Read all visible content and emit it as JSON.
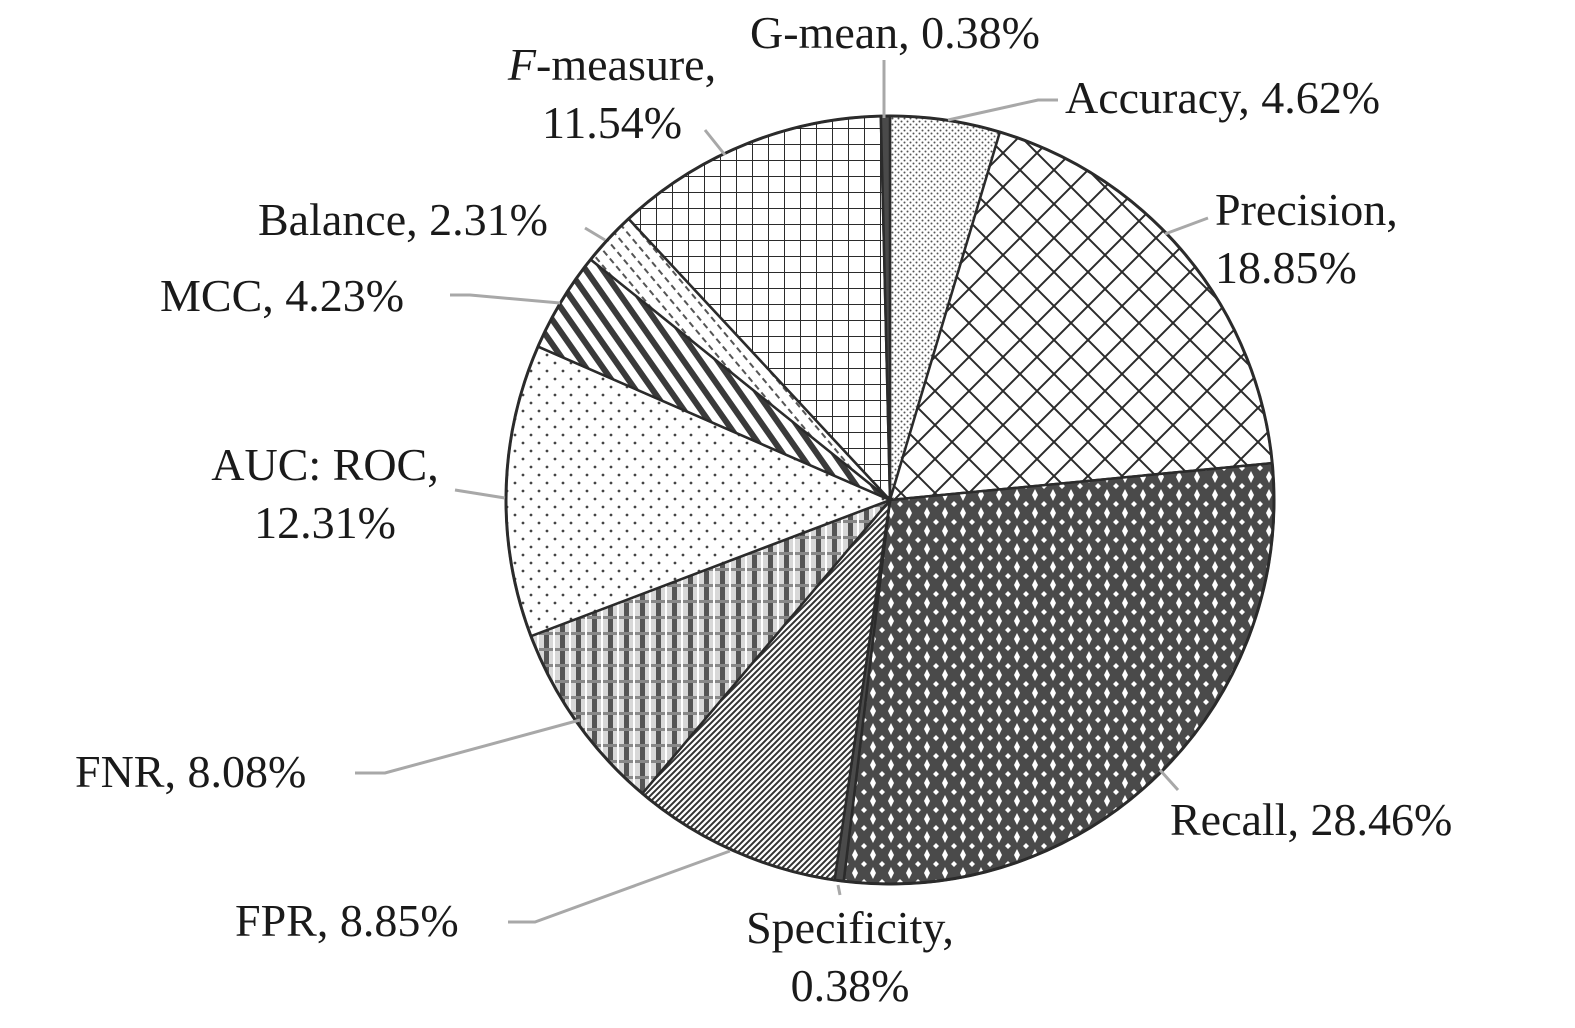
{
  "chart_data": {
    "type": "pie",
    "title": "",
    "start": "12 o'clock",
    "direction": "clockwise",
    "slices": [
      {
        "name": "Accuracy",
        "value": 4.62,
        "value_text": "4.62%",
        "pattern": "fine-dots",
        "label_lines": [
          "Accuracy, 4.62%"
        ]
      },
      {
        "name": "Precision",
        "value": 18.85,
        "value_text": "18.85%",
        "pattern": "diagonal-crosshatch",
        "label_lines": [
          "Precision,",
          "18.85%"
        ]
      },
      {
        "name": "Recall",
        "value": 28.46,
        "value_text": "28.46%",
        "pattern": "dark-diamond-grid",
        "label_lines": [
          "Recall, 28.46%"
        ]
      },
      {
        "name": "Specificity",
        "value": 0.38,
        "value_text": "0.38%",
        "pattern": "solid-dark",
        "label_lines": [
          "Specificity,",
          "0.38%"
        ]
      },
      {
        "name": "FPR",
        "value": 8.85,
        "value_text": "8.85%",
        "pattern": "dense-diagonal",
        "label_lines": [
          "FPR, 8.85%"
        ]
      },
      {
        "name": "FNR",
        "value": 8.08,
        "value_text": "8.08%",
        "pattern": "plaid",
        "label_lines": [
          "FNR, 8.08%"
        ]
      },
      {
        "name": "AUC: ROC",
        "value": 12.31,
        "value_text": "12.31%",
        "pattern": "sparse-dots",
        "label_lines": [
          "AUC: ROC,",
          "12.31%"
        ]
      },
      {
        "name": "MCC",
        "value": 4.23,
        "value_text": "4.23%",
        "pattern": "wide-diagonal-stripes",
        "label_lines": [
          "MCC, 4.23%"
        ]
      },
      {
        "name": "Balance",
        "value": 2.31,
        "value_text": "2.31%",
        "pattern": "dashed-diagonal",
        "label_lines": [
          "Balance, 2.31%"
        ]
      },
      {
        "name": "F-measure",
        "value": 11.54,
        "value_text": "11.54%",
        "pattern": "square-grid",
        "label_lines": [
          "F-measure,",
          "11.54%"
        ],
        "italic_prefix": "F"
      },
      {
        "name": "G-mean",
        "value": 0.38,
        "value_text": "0.38%",
        "pattern": "solid-dark",
        "label_lines": [
          "G-mean, 0.38%"
        ]
      }
    ],
    "legend": "none",
    "colors": {
      "outline": "#2b2b2b",
      "leader": "#a8a8a8",
      "text": "#1a1a1a",
      "dark_fill": "#4a4a4a"
    }
  }
}
